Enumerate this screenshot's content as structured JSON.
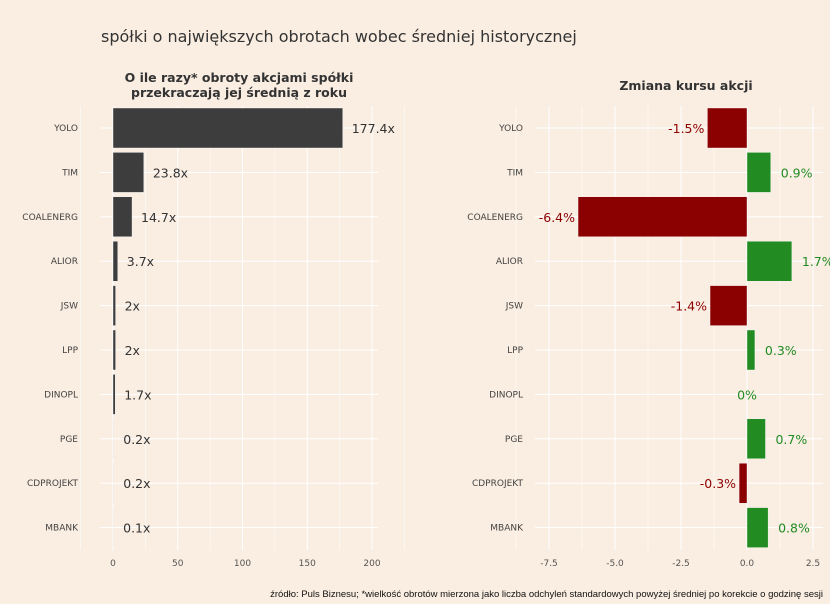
{
  "title": "spółki o największych obrotach wobec średniej historycznej",
  "caption": "źródło: Puls Biznesu; *wielkość obrotów mierzona jako liczba odchyleń standardowych powyżej średniej po korekcie o godzinę sesji",
  "colors": {
    "background": "#FAEDE1",
    "bar_left": "#3D3D3D",
    "negative": "#8B0000",
    "positive": "#228B22",
    "grid": "#FFFFFF"
  },
  "chart_data": [
    {
      "type": "bar",
      "orientation": "horizontal",
      "title_lines": [
        "O ile razy* obroty akcjami spółki",
        "przekraczają jej średnią z roku"
      ],
      "categories": [
        "YOLO",
        "TIM",
        "COALENERG",
        "ALIOR",
        "JSW",
        "LPP",
        "DINOPL",
        "PGE",
        "CDPROJEKT",
        "MBANK"
      ],
      "values": [
        177.4,
        23.8,
        14.7,
        3.7,
        2,
        2,
        1.7,
        0.2,
        0.2,
        0.1
      ],
      "data_labels": [
        "177.4x",
        "23.8x",
        "14.7x",
        "3.7x",
        "2x",
        "2x",
        "1.7x",
        "0.2x",
        "0.2x",
        "0.1x"
      ],
      "xlim": [
        -10,
        205
      ],
      "xticks": [
        0,
        50,
        100,
        150,
        200
      ],
      "grid": true
    },
    {
      "type": "bar",
      "orientation": "horizontal",
      "title_lines": [
        "Zmiana kursu akcji"
      ],
      "categories": [
        "YOLO",
        "TIM",
        "COALENERG",
        "ALIOR",
        "JSW",
        "LPP",
        "DINOPL",
        "PGE",
        "CDPROJEKT",
        "MBANK"
      ],
      "values": [
        -1.5,
        0.9,
        -6.4,
        1.7,
        -1.4,
        0.3,
        0,
        0.7,
        -0.3,
        0.8
      ],
      "data_labels": [
        "-1.5%",
        "0.9%",
        "-6.4%",
        "1.7%",
        "-1.4%",
        "0.3%",
        "0%",
        "0.7%",
        "-0.3%",
        "0.8%"
      ],
      "xlim": [
        -8.0,
        3.0
      ],
      "xticks": [
        -7.5,
        -5.0,
        -2.5,
        0.0,
        2.5
      ],
      "xtick_labels": [
        "-7.5",
        "-5.0",
        "-2.5",
        "0.0",
        "2.5"
      ],
      "grid": true
    }
  ]
}
